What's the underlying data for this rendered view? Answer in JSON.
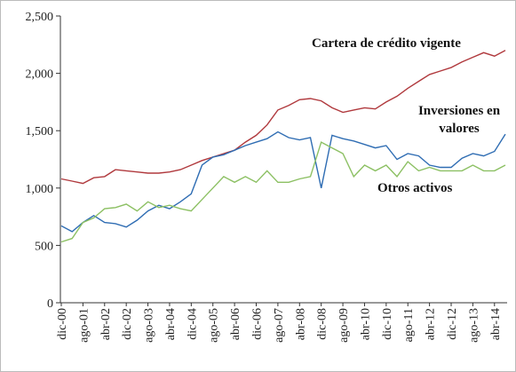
{
  "chart_data": {
    "type": "line",
    "categories": [
      "dic-00",
      null,
      "ago-01",
      null,
      "abr-02",
      null,
      "dic-02",
      null,
      "ago-03",
      null,
      "abr-04",
      null,
      "dic-04",
      null,
      "ago-05",
      null,
      "abr-06",
      null,
      "dic-06",
      null,
      "ago-07",
      null,
      "abr-08",
      null,
      "dic-08",
      null,
      "ago-09",
      null,
      "abr-10",
      null,
      "dic-10",
      null,
      "ago-11",
      null,
      "abr-12",
      null,
      "dic-12",
      null,
      "ago-13",
      null,
      "abr-14",
      null
    ],
    "series": [
      {
        "name": "Cartera de crédito vigente",
        "color": "#b0393d",
        "values": [
          1080,
          1060,
          1040,
          1090,
          1100,
          1160,
          1150,
          1140,
          1130,
          1130,
          1140,
          1160,
          1200,
          1240,
          1270,
          1300,
          1330,
          1400,
          1460,
          1550,
          1680,
          1720,
          1770,
          1780,
          1760,
          1700,
          1660,
          1680,
          1700,
          1690,
          1750,
          1800,
          1870,
          1930,
          1990,
          2020,
          2050,
          2100,
          2140,
          2180,
          2150,
          2200
        ]
      },
      {
        "name": "Inversiones en valores",
        "color": "#2f6db3",
        "values": [
          670,
          620,
          700,
          760,
          700,
          690,
          660,
          720,
          800,
          850,
          820,
          880,
          950,
          1200,
          1270,
          1290,
          1330,
          1370,
          1400,
          1430,
          1490,
          1440,
          1420,
          1440,
          1000,
          1460,
          1430,
          1410,
          1380,
          1350,
          1370,
          1250,
          1300,
          1280,
          1200,
          1180,
          1180,
          1260,
          1300,
          1280,
          1320,
          1470
        ]
      },
      {
        "name": "Otros activos",
        "color": "#8cc063",
        "values": [
          530,
          560,
          700,
          740,
          820,
          830,
          860,
          800,
          880,
          830,
          850,
          820,
          800,
          900,
          1000,
          1100,
          1050,
          1100,
          1050,
          1150,
          1050,
          1050,
          1080,
          1100,
          1400,
          1350,
          1300,
          1100,
          1200,
          1150,
          1200,
          1100,
          1230,
          1150,
          1180,
          1150,
          1150,
          1150,
          1200,
          1150,
          1150,
          1200
        ]
      }
    ],
    "ylim": [
      0,
      2500
    ],
    "yticks": [
      0,
      500,
      {
        "value": 1000,
        "label": "1,000"
      },
      {
        "value": 1500,
        "label": "1,500"
      },
      {
        "value": 2000,
        "label": "2,000"
      },
      {
        "value": 2500,
        "label": "2,500"
      }
    ],
    "grid": false
  }
}
